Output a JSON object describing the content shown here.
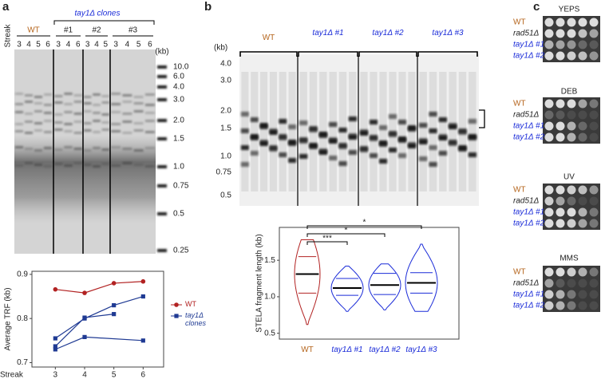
{
  "panel_a": {
    "label": "a",
    "streak_label": "Streak",
    "clones_label": "tay1Δ clones",
    "groups": [
      {
        "name": "WT",
        "lanes": [
          "3",
          "4",
          "5",
          "6"
        ]
      },
      {
        "name": "#1",
        "lanes": [
          "3",
          "4",
          "6"
        ]
      },
      {
        "name": "#2",
        "lanes": [
          "3",
          "4",
          "5"
        ]
      },
      {
        "name": "#3",
        "lanes": [
          "3",
          "4",
          "5",
          "6"
        ]
      }
    ],
    "kb": "(kb)",
    "markers": [
      "10.0",
      "6.0",
      "4.0",
      "3.0",
      "2.0",
      "1.5",
      "1.0",
      "0.75",
      "0.5",
      "0.25"
    ]
  },
  "panel_b": {
    "label": "b",
    "kb": "(kb)",
    "markers": [
      "4.0",
      "3.0",
      "2.0",
      "1.5",
      "1.0",
      "0.75",
      "0.5"
    ],
    "groups": [
      "WT",
      "tay1Δ #1",
      "tay1Δ #2",
      "tay1Δ #3"
    ]
  },
  "panel_c": {
    "label": "c",
    "plates": [
      "YEPS",
      "DEB",
      "UV",
      "MMS"
    ],
    "strains": [
      "WT",
      "rad51Δ",
      "tay1Δ #1",
      "tay1Δ #2"
    ]
  },
  "chart_data": [
    {
      "type": "line",
      "ylabel": "Average TRF (kb)",
      "xlabel": "Streak",
      "x": [
        3,
        4,
        5,
        6
      ],
      "xlim": [
        2.2,
        6.7
      ],
      "xticks": [
        3,
        4,
        5,
        6
      ],
      "ylim": [
        0.69,
        0.907
      ],
      "yticks": [
        0.7,
        0.8,
        0.9
      ],
      "legend": "right",
      "series": [
        {
          "name": "WT",
          "color": "#b22222",
          "marker": "circle",
          "values": [
            0.866,
            0.858,
            0.88,
            0.884
          ]
        },
        {
          "name": "tay1Δ clones",
          "color": "#1f3a93",
          "marker": "square",
          "x": [
            3,
            4,
            6
          ],
          "values": [
            0.73,
            0.758,
            0.75
          ]
        },
        {
          "color": "#1f3a93",
          "marker": "square",
          "x": [
            3,
            4,
            5
          ],
          "values": [
            0.737,
            0.802,
            0.81
          ]
        },
        {
          "color": "#1f3a93",
          "marker": "square",
          "values": [
            0.755,
            0.8,
            0.83,
            0.85
          ]
        }
      ]
    },
    {
      "type": "violin",
      "ylabel": "STELA fragment length (kb)",
      "categories": [
        "WT",
        "tay1Δ #1",
        "tay1Δ #2",
        "tay1Δ #3"
      ],
      "colors": [
        "#b22222",
        "#1a2bd8",
        "#1a2bd8",
        "#1a2bd8"
      ],
      "median": [
        1.31,
        1.12,
        1.16,
        1.19
      ],
      "q1": [
        1.05,
        1.02,
        1.03,
        1.05
      ],
      "q3": [
        1.55,
        1.25,
        1.32,
        1.33
      ],
      "min": [
        0.62,
        0.8,
        0.82,
        0.8
      ],
      "max": [
        1.78,
        1.42,
        1.45,
        1.72
      ],
      "ylim": [
        0.42,
        1.95
      ],
      "yticks": [
        0.5,
        {
          "value": 1,
          "label": "1.0"
        },
        1.5
      ],
      "significance": [
        "***",
        "*",
        "*"
      ]
    }
  ]
}
